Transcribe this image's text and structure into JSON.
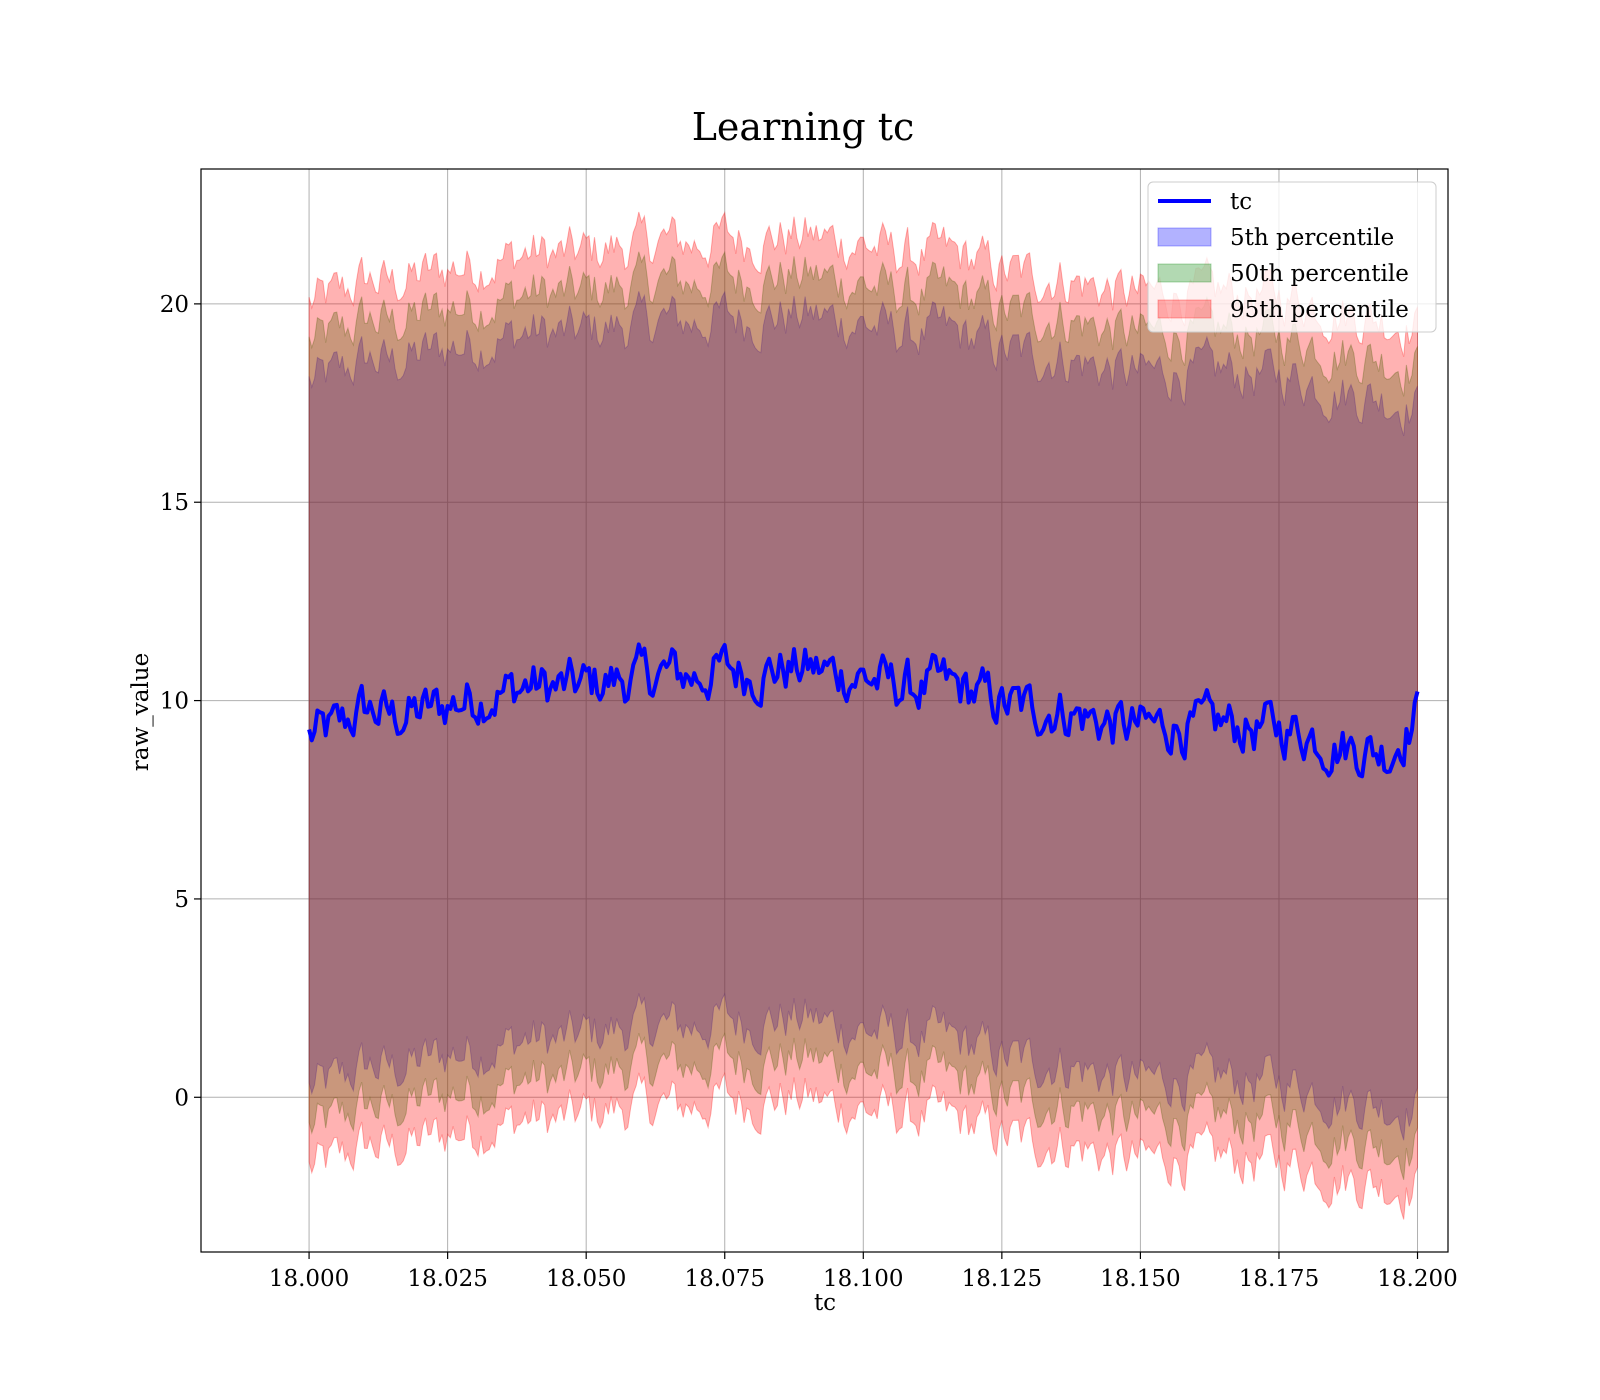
{
  "chart_data": {
    "type": "line",
    "title": "Learning tc",
    "xlabel": "tc",
    "ylabel": "raw_value",
    "xlim": [
      17.9805,
      18.2055
    ],
    "ylim": [
      -3.9,
      23.4
    ],
    "xticks": [
      18.0,
      18.025,
      18.05,
      18.075,
      18.1,
      18.125,
      18.15,
      18.175,
      18.2
    ],
    "xtick_labels": [
      "18.000",
      "18.025",
      "18.050",
      "18.075",
      "18.100",
      "18.125",
      "18.150",
      "18.175",
      "18.200"
    ],
    "yticks": [
      0,
      5,
      10,
      15,
      20
    ],
    "ytick_labels": [
      "0",
      "5",
      "10",
      "15",
      "20"
    ],
    "grid": true,
    "legend_position": "top-right",
    "colors": {
      "tc": "#0000ff",
      "band_5": "#0000ff",
      "band_50": "#008000",
      "band_95": "#ff0000"
    },
    "series": [
      {
        "name": "tc",
        "kind": "line",
        "x": [
          18.0,
          18.005,
          18.01,
          18.015,
          18.02,
          18.025,
          18.03,
          18.035,
          18.04,
          18.045,
          18.05,
          18.055,
          18.06,
          18.065,
          18.07,
          18.075,
          18.08,
          18.085,
          18.09,
          18.095,
          18.1,
          18.105,
          18.11,
          18.115,
          18.12,
          18.125,
          18.13,
          18.135,
          18.14,
          18.145,
          18.15,
          18.155,
          18.16,
          18.165,
          18.17,
          18.175,
          18.18,
          18.185,
          18.19,
          18.195,
          18.2
        ],
        "y": [
          9.1,
          9.3,
          9.8,
          9.6,
          9.7,
          9.9,
          10.1,
          10.2,
          10.4,
          10.3,
          10.4,
          10.5,
          10.6,
          10.7,
          10.6,
          10.8,
          10.7,
          10.8,
          10.8,
          10.7,
          10.6,
          10.4,
          10.3,
          10.4,
          10.2,
          9.9,
          9.8,
          9.8,
          9.6,
          9.4,
          9.3,
          9.4,
          9.3,
          9.4,
          9.3,
          9.3,
          9.2,
          8.9,
          8.8,
          8.7,
          9.7
        ]
      },
      {
        "name": "5th percentile",
        "kind": "band",
        "x": [
          18.0,
          18.005,
          18.01,
          18.015,
          18.02,
          18.025,
          18.03,
          18.035,
          18.04,
          18.045,
          18.05,
          18.055,
          18.06,
          18.065,
          18.07,
          18.075,
          18.08,
          18.085,
          18.09,
          18.095,
          18.1,
          18.105,
          18.11,
          18.115,
          18.12,
          18.125,
          18.13,
          18.135,
          18.14,
          18.145,
          18.15,
          18.155,
          18.16,
          18.165,
          18.17,
          18.175,
          18.18,
          18.185,
          18.19,
          18.195,
          18.2
        ],
        "lower": [
          0.2,
          0.4,
          0.8,
          0.7,
          0.9,
          1.1,
          1.2,
          1.3,
          1.5,
          1.4,
          1.6,
          1.7,
          1.8,
          1.8,
          1.8,
          2.0,
          1.9,
          2.0,
          2.0,
          1.8,
          1.7,
          1.6,
          1.5,
          1.5,
          1.3,
          1.0,
          0.9,
          0.9,
          0.7,
          0.5,
          0.4,
          0.5,
          0.4,
          0.5,
          0.4,
          0.4,
          0.3,
          0.0,
          -0.1,
          -0.2,
          -0.3
        ],
        "upper": [
          18.0,
          18.2,
          18.6,
          18.5,
          18.7,
          18.9,
          19.0,
          19.1,
          19.3,
          19.2,
          19.3,
          19.4,
          19.5,
          19.6,
          19.5,
          19.7,
          19.6,
          19.7,
          19.7,
          19.6,
          19.5,
          19.3,
          19.2,
          19.3,
          19.1,
          18.8,
          18.7,
          18.7,
          18.5,
          18.3,
          18.2,
          18.3,
          18.2,
          18.3,
          18.2,
          18.2,
          18.1,
          17.8,
          17.7,
          17.6,
          17.4
        ]
      },
      {
        "name": "50th percentile",
        "kind": "band",
        "x": [
          18.0,
          18.005,
          18.01,
          18.015,
          18.02,
          18.025,
          18.03,
          18.035,
          18.04,
          18.045,
          18.05,
          18.055,
          18.06,
          18.065,
          18.07,
          18.075,
          18.08,
          18.085,
          18.09,
          18.095,
          18.1,
          18.105,
          18.11,
          18.115,
          18.12,
          18.125,
          18.13,
          18.135,
          18.14,
          18.145,
          18.15,
          18.155,
          18.16,
          18.165,
          18.17,
          18.175,
          18.18,
          18.185,
          18.19,
          18.195,
          18.2
        ],
        "lower": [
          -0.8,
          -0.6,
          -0.2,
          -0.3,
          -0.1,
          0.1,
          0.2,
          0.3,
          0.5,
          0.4,
          0.6,
          0.7,
          0.8,
          0.8,
          0.8,
          1.0,
          0.9,
          1.0,
          1.0,
          0.8,
          0.7,
          0.6,
          0.5,
          0.5,
          0.3,
          0.0,
          -0.1,
          -0.1,
          -0.3,
          -0.5,
          -0.6,
          -0.5,
          -0.6,
          -0.5,
          -0.6,
          -0.6,
          -0.7,
          -1.0,
          -1.1,
          -1.2,
          -1.3
        ],
        "upper": [
          19.0,
          19.2,
          19.6,
          19.5,
          19.7,
          19.9,
          20.0,
          20.1,
          20.3,
          20.2,
          20.3,
          20.4,
          20.5,
          20.6,
          20.5,
          20.7,
          20.6,
          20.7,
          20.7,
          20.6,
          20.5,
          20.3,
          20.2,
          20.3,
          20.1,
          19.8,
          19.7,
          19.7,
          19.5,
          19.3,
          19.2,
          19.3,
          19.2,
          19.3,
          19.2,
          19.2,
          19.1,
          18.8,
          18.7,
          18.6,
          18.4
        ]
      },
      {
        "name": "95th percentile",
        "kind": "band",
        "x": [
          18.0,
          18.005,
          18.01,
          18.015,
          18.02,
          18.025,
          18.03,
          18.035,
          18.04,
          18.045,
          18.05,
          18.055,
          18.06,
          18.065,
          18.07,
          18.075,
          18.08,
          18.085,
          18.09,
          18.095,
          18.1,
          18.105,
          18.11,
          18.115,
          18.12,
          18.125,
          18.13,
          18.135,
          18.14,
          18.145,
          18.15,
          18.155,
          18.16,
          18.165,
          18.17,
          18.175,
          18.18,
          18.185,
          18.19,
          18.195,
          18.2
        ],
        "lower": [
          -1.8,
          -1.6,
          -1.2,
          -1.3,
          -1.1,
          -0.9,
          -0.8,
          -0.7,
          -0.5,
          -0.6,
          -0.4,
          -0.3,
          -0.2,
          -0.2,
          -0.2,
          0.0,
          -0.1,
          0.0,
          0.0,
          -0.2,
          -0.3,
          -0.4,
          -0.5,
          -0.5,
          -0.7,
          -1.0,
          -1.1,
          -1.1,
          -1.3,
          -1.5,
          -1.6,
          -1.5,
          -1.6,
          -1.5,
          -1.6,
          -1.6,
          -1.7,
          -2.0,
          -2.1,
          -2.2,
          -2.3
        ],
        "upper": [
          20.0,
          20.2,
          20.6,
          20.5,
          20.7,
          20.9,
          21.0,
          21.1,
          21.3,
          21.2,
          21.3,
          21.4,
          21.5,
          21.6,
          21.5,
          21.7,
          21.6,
          21.7,
          21.7,
          21.6,
          21.5,
          21.3,
          21.2,
          21.3,
          21.1,
          20.8,
          20.7,
          20.7,
          20.5,
          20.3,
          20.2,
          20.3,
          20.2,
          20.3,
          20.2,
          20.2,
          20.1,
          19.8,
          19.7,
          19.6,
          19.4
        ]
      }
    ]
  },
  "legend": {
    "items": [
      "tc",
      "5th percentile",
      "50th percentile",
      "95th percentile"
    ]
  }
}
